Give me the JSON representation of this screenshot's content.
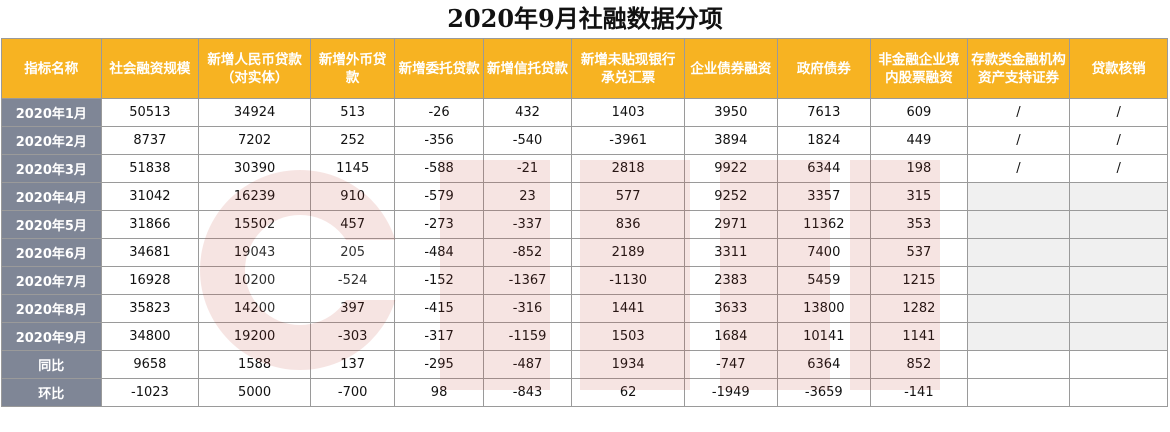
{
  "title": "2020年9月社融数据分项",
  "columns": [
    "指标名称",
    "社会融资规模",
    "新增人民币贷款（对实体）",
    "新增外币贷款",
    "新增委托贷款",
    "新增信托贷款",
    "新增未贴现银行承兑汇票",
    "企业债券融资",
    "政府债券",
    "非金融企业境内股票融资",
    "存款类金融机构资产支持证券",
    "贷款核销"
  ],
  "rows": [
    {
      "label": "2020年1月",
      "values": [
        "50513",
        "34924",
        "513",
        "-26",
        "432",
        "1403",
        "3950",
        "7613",
        "609",
        "/",
        "/"
      ]
    },
    {
      "label": "2020年2月",
      "values": [
        "8737",
        "7202",
        "252",
        "-356",
        "-540",
        "-3961",
        "3894",
        "1824",
        "449",
        "/",
        "/"
      ]
    },
    {
      "label": "2020年3月",
      "values": [
        "51838",
        "30390",
        "1145",
        "-588",
        "-21",
        "2818",
        "9922",
        "6344",
        "198",
        "/",
        "/"
      ]
    },
    {
      "label": "2020年4月",
      "values": [
        "31042",
        "16239",
        "910",
        "-579",
        "23",
        "577",
        "9252",
        "3357",
        "315",
        "",
        ""
      ]
    },
    {
      "label": "2020年5月",
      "values": [
        "31866",
        "15502",
        "457",
        "-273",
        "-337",
        "836",
        "2971",
        "11362",
        "353",
        "",
        ""
      ]
    },
    {
      "label": "2020年6月",
      "values": [
        "34681",
        "19043",
        "205",
        "-484",
        "-852",
        "2189",
        "3311",
        "7400",
        "537",
        "",
        ""
      ]
    },
    {
      "label": "2020年7月",
      "values": [
        "16928",
        "10200",
        "-524",
        "-152",
        "-1367",
        "-1130",
        "2383",
        "5459",
        "1215",
        "",
        ""
      ]
    },
    {
      "label": "2020年8月",
      "values": [
        "35823",
        "14200",
        "397",
        "-415",
        "-316",
        "1441",
        "3633",
        "13800",
        "1282",
        "",
        ""
      ]
    },
    {
      "label": "2020年9月",
      "values": [
        "34800",
        "19200",
        "-303",
        "-317",
        "-1159",
        "1503",
        "1684",
        "10141",
        "1141",
        "",
        ""
      ]
    },
    {
      "label": "同比",
      "values": [
        "9658",
        "1588",
        "137",
        "-295",
        "-487",
        "1934",
        "-747",
        "6364",
        "852",
        "",
        ""
      ]
    },
    {
      "label": "环比",
      "values": [
        "-1023",
        "5000",
        "-700",
        "98",
        "-843",
        "62",
        "-1949",
        "-3659",
        "-141",
        "",
        ""
      ]
    }
  ],
  "watermark": {
    "icon": "logo-watermark-icon"
  },
  "colors": {
    "header_bg": "#f7b322",
    "row_label_bg": "#7f8696",
    "empty_gray": "#f0f0f0"
  }
}
